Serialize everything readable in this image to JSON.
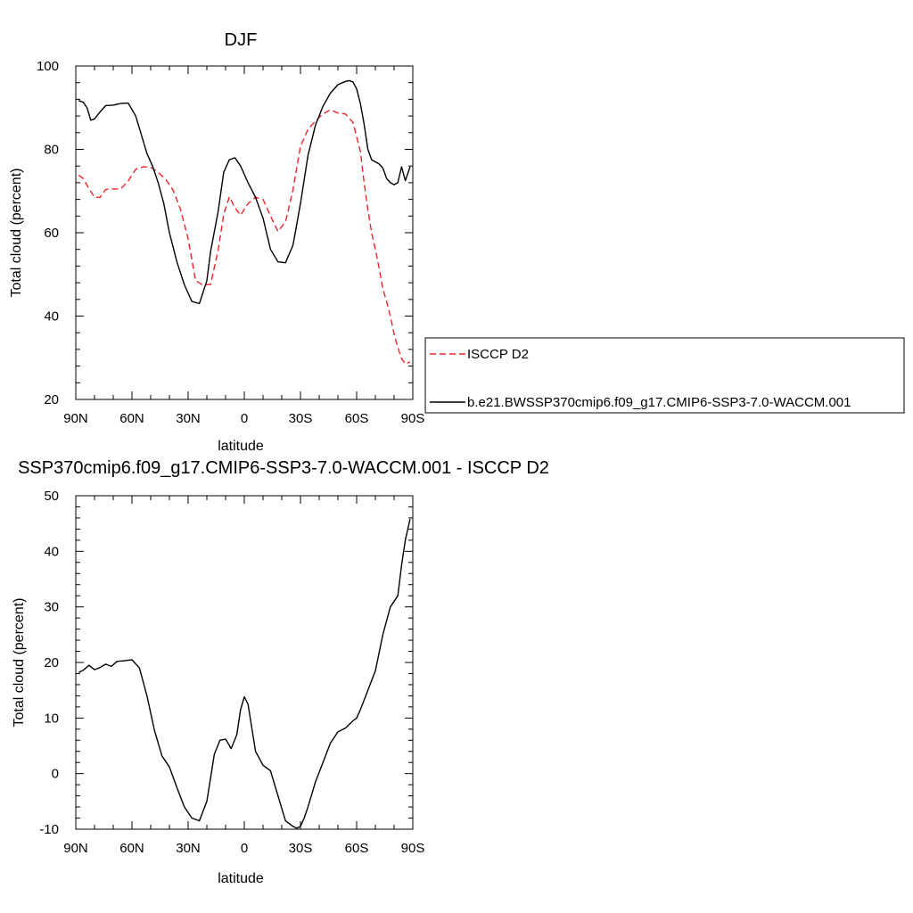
{
  "chart_data": [
    {
      "type": "line",
      "title": "DJF",
      "xlabel": "latitude",
      "ylabel": "Total cloud (percent)",
      "xlim": [
        90,
        -90
      ],
      "ylim": [
        20,
        100
      ],
      "xticks": [
        90,
        60,
        30,
        0,
        -30,
        -60,
        -90
      ],
      "xtick_labels": [
        "90N",
        "60N",
        "30N",
        "0",
        "30S",
        "60S",
        "90S"
      ],
      "yticks": [
        20,
        40,
        60,
        80,
        100
      ],
      "ytick_labels": [
        "20",
        "40",
        "60",
        "80",
        "100"
      ],
      "legend_position": "right",
      "series": [
        {
          "name": "ISCCP D2",
          "color": "#e8262b",
          "dash": "dashed",
          "x": [
            88.5,
            86,
            83,
            80,
            77,
            74,
            70,
            66,
            62,
            58,
            54,
            50,
            46,
            42,
            38,
            34,
            30,
            26,
            22,
            18,
            14,
            11,
            8,
            5,
            2,
            -2,
            -6,
            -10,
            -14,
            -18,
            -22,
            -26,
            -30,
            -34,
            -38,
            -42,
            -46,
            -50,
            -54,
            -58,
            -62,
            -64,
            -66,
            -68,
            -70,
            -72,
            -74,
            -76,
            -78,
            -80,
            -82,
            -84,
            -86,
            -88.5
          ],
          "y": [
            73.8,
            73,
            70.6,
            68.5,
            68.5,
            70.4,
            70.5,
            70.5,
            72.4,
            75.2,
            75.8,
            75.7,
            74.5,
            72.8,
            70.2,
            65.5,
            58.5,
            48.5,
            47.4,
            47.6,
            55.7,
            64.4,
            68.6,
            66,
            64.2,
            67,
            68.5,
            68,
            64,
            60.3,
            62.6,
            70.3,
            80.7,
            84.8,
            86.8,
            88.5,
            89.5,
            88.7,
            88.5,
            86.5,
            79.5,
            72,
            65.5,
            60,
            56,
            51.5,
            46.5,
            43.5,
            40,
            35.7,
            32.5,
            29.8,
            28.5,
            29
          ]
        },
        {
          "name": "b.e21.BWSSP370cmip6.f09_g17.CMIP6-SSP3-7.0-WACCM.001",
          "color": "#000000",
          "dash": "solid",
          "x": [
            88.5,
            86,
            84,
            82,
            80,
            77,
            74,
            70,
            66,
            62,
            58,
            55,
            52,
            49,
            46,
            43,
            40,
            36,
            32,
            28,
            24,
            20,
            18,
            14,
            11,
            8,
            5,
            2,
            -2,
            -6,
            -10,
            -14,
            -18,
            -22,
            -26,
            -30,
            -34,
            -38,
            -42,
            -46,
            -50,
            -54,
            -56,
            -58,
            -60,
            -62,
            -64,
            -66,
            -68,
            -70,
            -72,
            -74,
            -76,
            -78,
            -80,
            -82,
            -84,
            -86,
            -88.5
          ],
          "y": [
            91.7,
            91.3,
            90,
            87,
            87.3,
            89,
            90.5,
            90.6,
            91,
            91.1,
            88,
            83.5,
            79,
            76,
            72,
            67,
            60,
            53,
            47.5,
            43.5,
            43,
            48.5,
            55.5,
            65,
            74.5,
            77.5,
            78,
            76,
            72,
            68.5,
            63.5,
            56,
            53,
            52.8,
            57,
            67,
            78.5,
            85.8,
            90.3,
            93.5,
            95.5,
            96.3,
            96.5,
            96.2,
            94.5,
            91,
            86,
            80,
            77.5,
            77,
            76.5,
            75.5,
            73,
            72,
            71.5,
            72,
            75.8,
            72.5,
            75.8
          ]
        }
      ]
    },
    {
      "type": "line",
      "title": "SSP370cmip6.f09_g17.CMIP6-SSP3-7.0-WACCM.001 - ISCCP D2",
      "xlabel": "latitude",
      "ylabel": "Total cloud (percent)",
      "xlim": [
        90,
        -90
      ],
      "ylim": [
        -10,
        50
      ],
      "xticks": [
        90,
        60,
        30,
        0,
        -30,
        -60,
        -90
      ],
      "xtick_labels": [
        "90N",
        "60N",
        "30N",
        "0",
        "30S",
        "60S",
        "90S"
      ],
      "yticks": [
        -10,
        0,
        10,
        20,
        30,
        40,
        50
      ],
      "ytick_labels": [
        "-10",
        "0",
        "10",
        "20",
        "30",
        "40",
        "50"
      ],
      "series": [
        {
          "color": "#000000",
          "dash": "solid",
          "x": [
            88.5,
            86,
            83,
            80,
            77,
            74,
            71,
            68,
            64,
            60,
            56,
            52,
            48,
            44,
            40,
            36,
            32,
            28,
            24,
            20,
            16,
            13,
            10,
            7,
            4,
            2,
            0,
            -2,
            -6,
            -10,
            -14,
            -18,
            -22,
            -26,
            -28,
            -30,
            -32,
            -34,
            -38,
            -42,
            -46,
            -50,
            -54,
            -58,
            -60,
            -62,
            -66,
            -70,
            -74,
            -78,
            -82,
            -84,
            -86,
            -88.5
          ],
          "y": [
            18.2,
            18.6,
            19.5,
            18.7,
            19.1,
            19.7,
            19.3,
            20.2,
            20.3,
            20.5,
            19,
            14,
            7.8,
            3.2,
            1.2,
            -2.5,
            -6,
            -8,
            -8.5,
            -5,
            3.5,
            6,
            6.2,
            4.5,
            7,
            11.5,
            13.8,
            12.5,
            4,
            1.5,
            0.5,
            -4,
            -8.5,
            -9.5,
            -9.8,
            -9.5,
            -8,
            -6,
            -1.5,
            2,
            5.5,
            7.5,
            8.2,
            9.5,
            10,
            11.5,
            15,
            18.5,
            25,
            30,
            32,
            37.5,
            42,
            45.8
          ]
        }
      ]
    }
  ]
}
